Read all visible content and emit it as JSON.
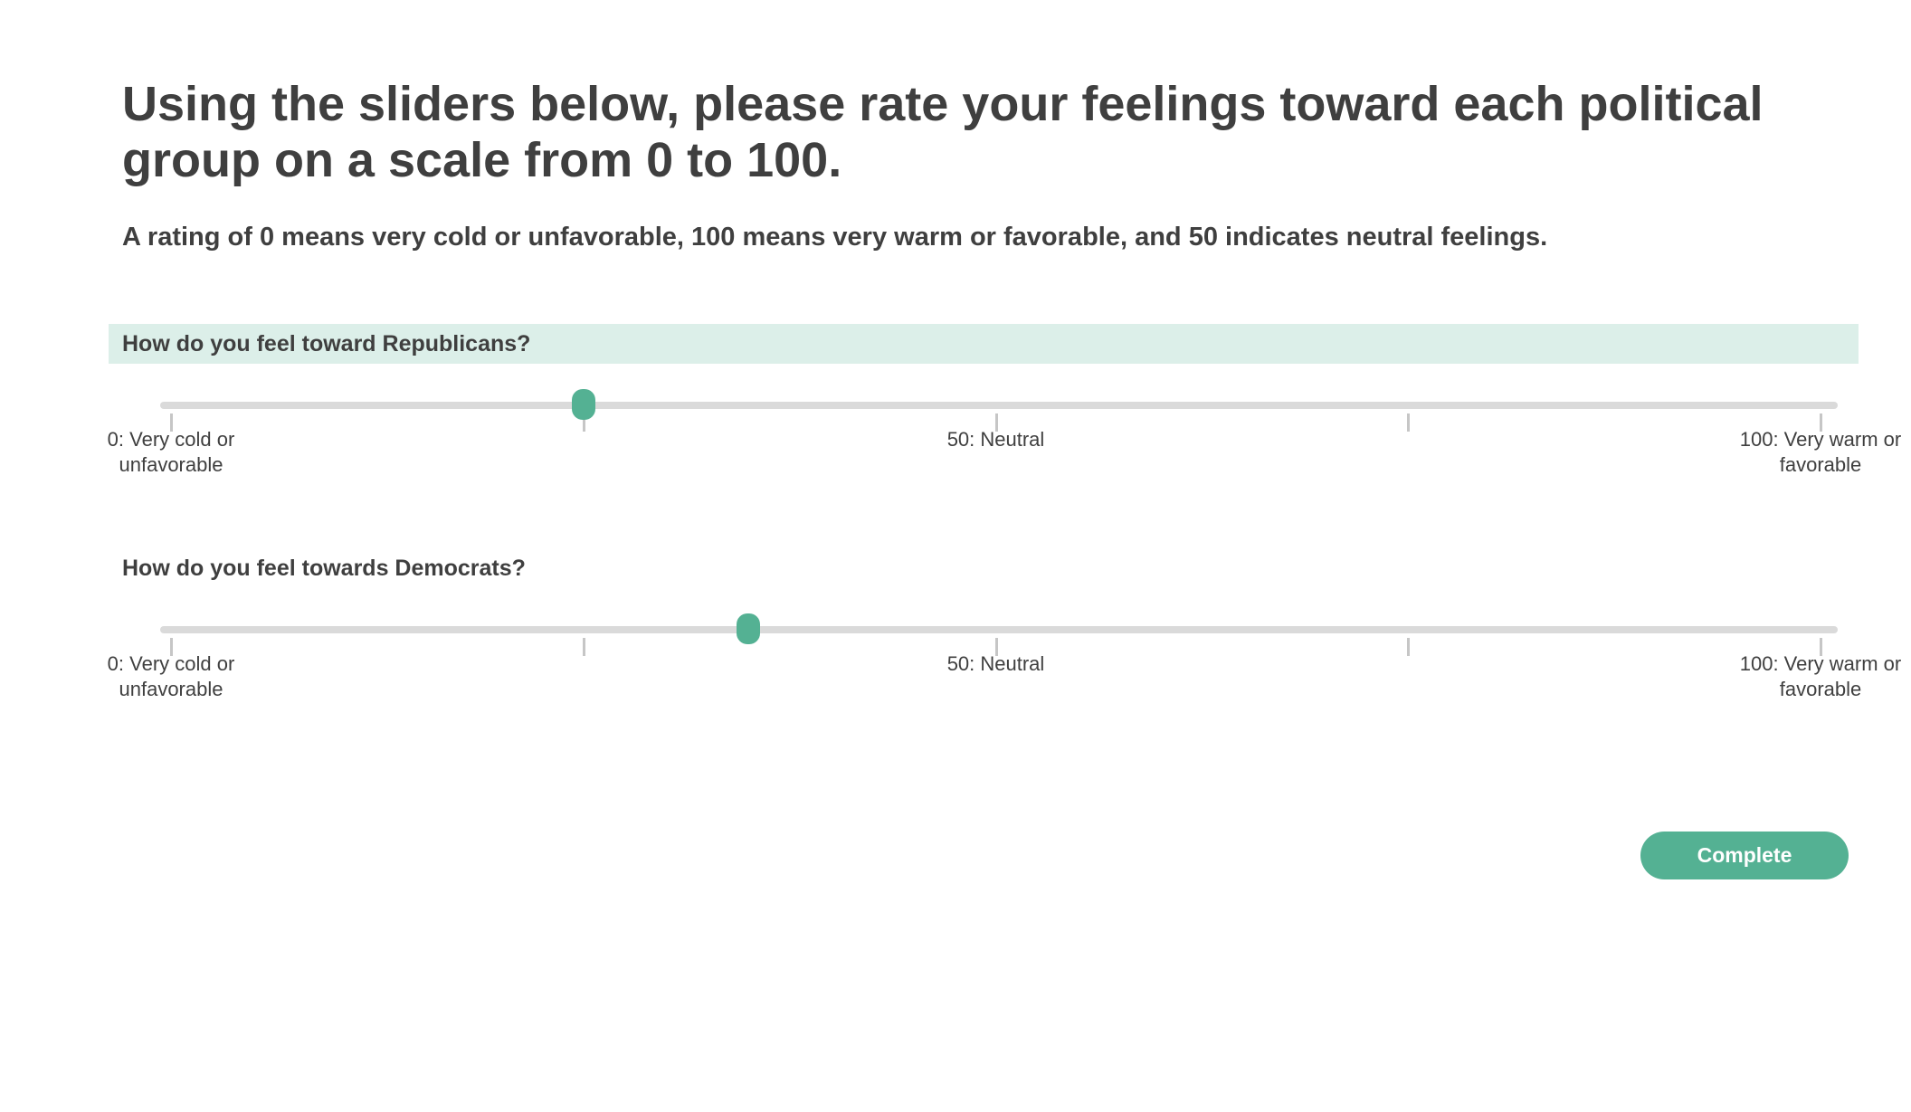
{
  "survey": {
    "title": "Using the sliders below, please rate your feelings toward each political group on a scale from 0 to 100.",
    "instructions": "A rating of 0 means very cold or unfavorable, 100 means very warm or favorable, and 50 indicates neutral feelings."
  },
  "scale": {
    "min": 0,
    "max": 100,
    "ticks": [
      0,
      25,
      50,
      75,
      100
    ],
    "labels": {
      "min": "0: Very cold or unfavorable",
      "mid": "50: Neutral",
      "max": "100: Very warm or favorable"
    }
  },
  "questions": [
    {
      "text": "How do you feel toward Republicans?",
      "value": 25,
      "highlighted": true
    },
    {
      "text": "How do you feel towards Democrats?",
      "value": 35,
      "highlighted": false
    }
  ],
  "actions": {
    "complete_label": "Complete"
  },
  "colors": {
    "accent": "#54b193",
    "highlight_bg": "#dcefe9",
    "track": "#dadada",
    "tick": "#c6c6c6",
    "text": "#3f3f3f"
  }
}
